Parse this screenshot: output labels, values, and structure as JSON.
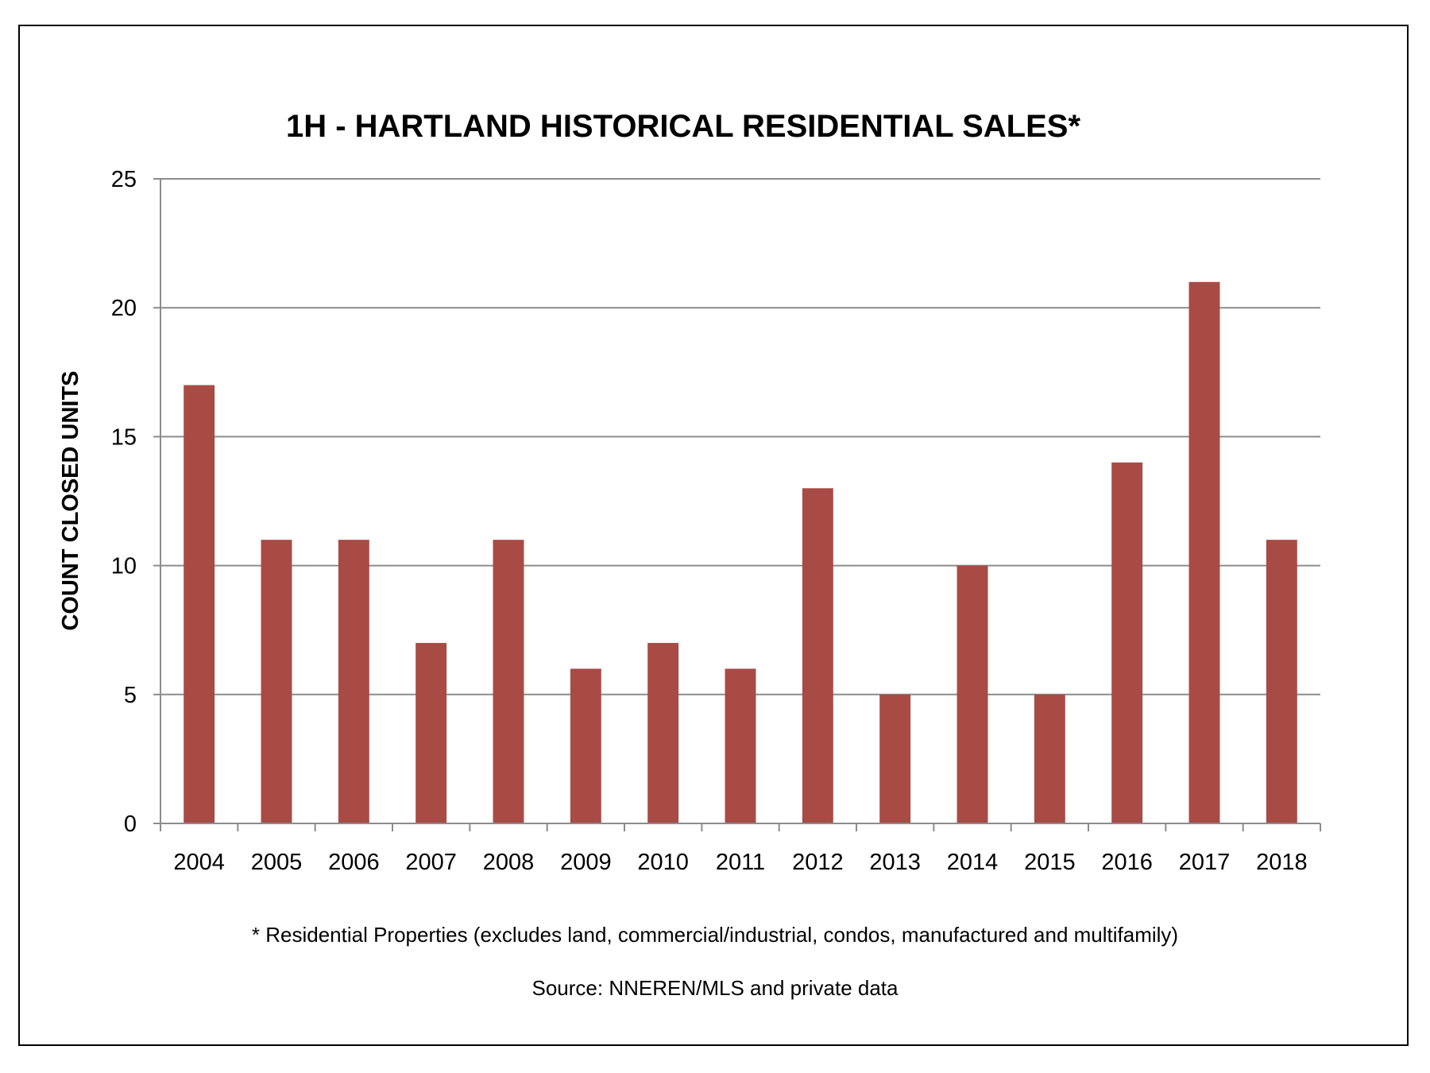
{
  "chart_data": {
    "type": "bar",
    "title": "1H - HARTLAND HISTORICAL RESIDENTIAL SALES*",
    "xlabel": "",
    "ylabel": "COUNT CLOSED UNITS",
    "categories": [
      "2004",
      "2005",
      "2006",
      "2007",
      "2008",
      "2009",
      "2010",
      "2011",
      "2012",
      "2013",
      "2014",
      "2015",
      "2016",
      "2017",
      "2018"
    ],
    "series": [
      {
        "values": [
          17,
          11,
          11,
          7,
          11,
          6,
          7,
          6,
          13,
          5,
          10,
          5,
          14,
          21,
          11
        ],
        "color": "#a84b45"
      }
    ],
    "ylim": [
      0,
      25
    ],
    "yticks": [
      "0",
      "5",
      "10",
      "15",
      "20",
      "25"
    ],
    "grid": true,
    "legend": "none",
    "footnote": "* Residential Properties (excludes land, commercial/industrial, condos, manufactured and multifamily)",
    "source": "Source: NNEREN/MLS and private data"
  }
}
